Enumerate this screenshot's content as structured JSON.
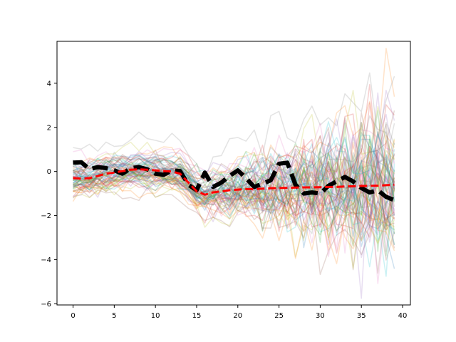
{
  "chart_data": {
    "type": "line",
    "title": "",
    "xlabel": "",
    "ylabel": "",
    "xlim": [
      -1.95,
      40.95
    ],
    "ylim": [
      -6.05,
      5.9
    ],
    "x_ticks": [
      0,
      5,
      10,
      15,
      20,
      25,
      30,
      35,
      40
    ],
    "y_ticks": [
      -6,
      -4,
      -2,
      0,
      2,
      4
    ],
    "grid": false,
    "legend": "none",
    "sample_paths": {
      "count": 80,
      "alpha": 0.22,
      "line_width": 1.5,
      "colors": [
        "#1f77b4",
        "#ff7f0e",
        "#2ca02c",
        "#d62728",
        "#9467bd",
        "#8c564b",
        "#e377c2",
        "#7f7f7f",
        "#bcbd22",
        "#17becf"
      ],
      "seed": 7
    },
    "series": [
      {
        "role": "mean",
        "color": "#ff0000",
        "style": "dashed",
        "x": [
          0,
          1,
          2,
          3,
          4,
          5,
          6,
          7,
          8,
          9,
          10,
          11,
          12,
          13,
          14,
          15,
          16,
          17,
          18,
          19,
          20,
          21,
          22,
          23,
          24,
          25,
          26,
          27,
          28,
          29,
          30,
          31,
          32,
          33,
          34,
          35,
          36,
          37,
          38,
          39
        ],
        "values": [
          -0.3,
          -0.32,
          -0.3,
          -0.2,
          -0.1,
          -0.05,
          0.02,
          0.08,
          0.1,
          0.08,
          0.05,
          0.02,
          0.0,
          -0.1,
          -0.5,
          -0.9,
          -1.05,
          -0.95,
          -0.9,
          -0.85,
          -0.82,
          -0.8,
          -0.8,
          -0.78,
          -0.76,
          -0.75,
          -0.74,
          -0.73,
          -0.72,
          -0.72,
          -0.71,
          -0.7,
          -0.7,
          -0.68,
          -0.67,
          -0.66,
          -0.65,
          -0.64,
          -0.62,
          -0.6
        ]
      },
      {
        "role": "sample",
        "color": "#000000",
        "style": "dashed",
        "x": [
          0,
          1,
          2,
          3,
          4,
          5,
          6,
          7,
          8,
          9,
          10,
          11,
          12,
          13,
          14,
          15,
          16,
          17,
          18,
          19,
          20,
          21,
          22,
          23,
          24,
          25,
          26,
          27,
          28,
          29,
          30,
          31,
          32,
          33,
          34,
          35,
          36,
          37,
          38,
          39
        ],
        "values": [
          0.4,
          0.42,
          0.1,
          0.2,
          0.15,
          0.05,
          -0.1,
          0.15,
          0.2,
          0.1,
          -0.1,
          -0.15,
          0.05,
          0.02,
          -0.6,
          -0.85,
          -0.05,
          -0.7,
          -0.5,
          -0.2,
          0.05,
          -0.3,
          -0.7,
          -0.55,
          -0.4,
          0.35,
          0.4,
          -0.6,
          -1.0,
          -0.95,
          -1.0,
          -0.65,
          -0.45,
          -0.25,
          -0.45,
          -0.75,
          -0.95,
          -0.85,
          -1.15,
          -1.3
        ]
      }
    ]
  }
}
